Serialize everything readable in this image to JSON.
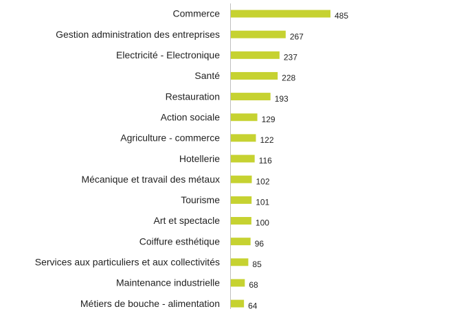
{
  "chart_data": {
    "type": "bar",
    "orientation": "horizontal",
    "categories": [
      "Commerce",
      "Gestion administration des entreprises",
      "Electricité - Electronique",
      "Santé",
      "Restauration",
      "Action sociale",
      "Agriculture - commerce",
      "Hotellerie",
      "Mécanique et travail des métaux",
      "Tourisme",
      "Art et spectacle",
      "Coiffure esthétique",
      "Services aux particuliers et aux collectivités",
      "Maintenance industrielle",
      "Métiers de bouche - alimentation"
    ],
    "values": [
      485,
      267,
      237,
      228,
      193,
      129,
      122,
      116,
      102,
      101,
      100,
      96,
      85,
      68,
      64
    ],
    "color": "#c6d231"
  }
}
